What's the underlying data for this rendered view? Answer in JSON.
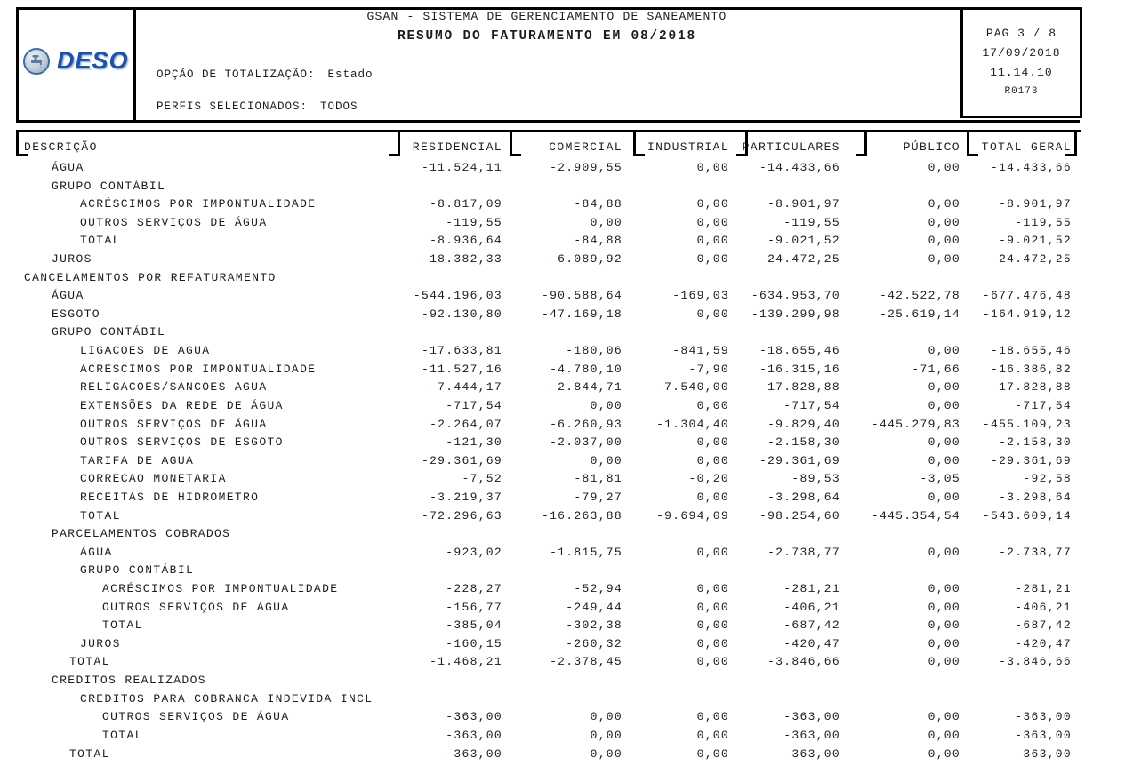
{
  "report": {
    "system_title": "GSAN - SISTEMA DE GERENCIAMENTO DE SANEAMENTO",
    "title": "RESUMO DO FATURAMENTO EM 08/2018",
    "logo_text": "DESO",
    "totalization_label": "OPÇÃO DE TOTALIZAÇÃO:",
    "totalization_value": "Estado",
    "profiles_label": "PERFIS SELECIONADOS:",
    "profiles_value": "TODOS",
    "page_info": {
      "page": "PAG 3 / 8",
      "date": "17/09/2018",
      "time": "11.14.10",
      "report_code": "R0173"
    }
  },
  "table": {
    "description_header": "DESCRIÇÃO",
    "columns": [
      "RESIDENCIAL",
      "COMERCIAL",
      "INDUSTRIAL",
      "PARTICULARES",
      "PÚBLICO",
      "TOTAL GERAL"
    ],
    "rows": [
      {
        "label": "ÁGUA",
        "level": "1",
        "values": [
          "-11.524,11",
          "-2.909,55",
          "0,00",
          "-14.433,66",
          "0,00",
          "-14.433,66"
        ]
      },
      {
        "label": "GRUPO CONTÁBIL",
        "level": "1",
        "values": []
      },
      {
        "label": "ACRÉSCIMOS POR IMPONTUALIDADE",
        "level": "2",
        "values": [
          "-8.817,09",
          "-84,88",
          "0,00",
          "-8.901,97",
          "0,00",
          "-8.901,97"
        ]
      },
      {
        "label": "OUTROS SERVIÇOS DE ÁGUA",
        "level": "2",
        "values": [
          "-119,55",
          "0,00",
          "0,00",
          "-119,55",
          "0,00",
          "-119,55"
        ]
      },
      {
        "label": "TOTAL",
        "level": "2",
        "values": [
          "-8.936,64",
          "-84,88",
          "0,00",
          "-9.021,52",
          "0,00",
          "-9.021,52"
        ]
      },
      {
        "label": "JUROS",
        "level": "1",
        "values": [
          "-18.382,33",
          "-6.089,92",
          "0,00",
          "-24.472,25",
          "0,00",
          "-24.472,25"
        ]
      },
      {
        "label": "CANCELAMENTOS POR REFATURAMENTO",
        "level": "0",
        "values": []
      },
      {
        "label": "ÁGUA",
        "level": "1",
        "values": [
          "-544.196,03",
          "-90.588,64",
          "-169,03",
          "-634.953,70",
          "-42.522,78",
          "-677.476,48"
        ]
      },
      {
        "label": "ESGOTO",
        "level": "1",
        "values": [
          "-92.130,80",
          "-47.169,18",
          "0,00",
          "-139.299,98",
          "-25.619,14",
          "-164.919,12"
        ]
      },
      {
        "label": "GRUPO CONTÁBIL",
        "level": "1",
        "values": []
      },
      {
        "label": "LIGACOES DE AGUA",
        "level": "2",
        "values": [
          "-17.633,81",
          "-180,06",
          "-841,59",
          "-18.655,46",
          "0,00",
          "-18.655,46"
        ]
      },
      {
        "label": "ACRÉSCIMOS POR IMPONTUALIDADE",
        "level": "2",
        "values": [
          "-11.527,16",
          "-4.780,10",
          "-7,90",
          "-16.315,16",
          "-71,66",
          "-16.386,82"
        ]
      },
      {
        "label": "RELIGACOES/SANCOES AGUA",
        "level": "2",
        "values": [
          "-7.444,17",
          "-2.844,71",
          "-7.540,00",
          "-17.828,88",
          "0,00",
          "-17.828,88"
        ]
      },
      {
        "label": "EXTENSÕES DA REDE DE ÁGUA",
        "level": "2",
        "values": [
          "-717,54",
          "0,00",
          "0,00",
          "-717,54",
          "0,00",
          "-717,54"
        ]
      },
      {
        "label": "OUTROS SERVIÇOS DE ÁGUA",
        "level": "2",
        "values": [
          "-2.264,07",
          "-6.260,93",
          "-1.304,40",
          "-9.829,40",
          "-445.279,83",
          "-455.109,23"
        ]
      },
      {
        "label": "OUTROS SERVIÇOS DE ESGOTO",
        "level": "2",
        "values": [
          "-121,30",
          "-2.037,00",
          "0,00",
          "-2.158,30",
          "0,00",
          "-2.158,30"
        ]
      },
      {
        "label": "TARIFA DE AGUA",
        "level": "2",
        "values": [
          "-29.361,69",
          "0,00",
          "0,00",
          "-29.361,69",
          "0,00",
          "-29.361,69"
        ]
      },
      {
        "label": "CORRECAO MONETARIA",
        "level": "2",
        "values": [
          "-7,52",
          "-81,81",
          "-0,20",
          "-89,53",
          "-3,05",
          "-92,58"
        ]
      },
      {
        "label": "RECEITAS DE HIDROMETRO",
        "level": "2",
        "values": [
          "-3.219,37",
          "-79,27",
          "0,00",
          "-3.298,64",
          "0,00",
          "-3.298,64"
        ]
      },
      {
        "label": "TOTAL",
        "level": "2",
        "values": [
          "-72.296,63",
          "-16.263,88",
          "-9.694,09",
          "-98.254,60",
          "-445.354,54",
          "-543.609,14"
        ]
      },
      {
        "label": "PARCELAMENTOS COBRADOS",
        "level": "1",
        "values": []
      },
      {
        "label": "ÁGUA",
        "level": "2",
        "values": [
          "-923,02",
          "-1.815,75",
          "0,00",
          "-2.738,77",
          "0,00",
          "-2.738,77"
        ]
      },
      {
        "label": "GRUPO CONTÁBIL",
        "level": "2",
        "values": []
      },
      {
        "label": "ACRÉSCIMOS POR IMPONTUALIDADE",
        "level": "3",
        "values": [
          "-228,27",
          "-52,94",
          "0,00",
          "-281,21",
          "0,00",
          "-281,21"
        ]
      },
      {
        "label": "OUTROS SERVIÇOS DE ÁGUA",
        "level": "3",
        "values": [
          "-156,77",
          "-249,44",
          "0,00",
          "-406,21",
          "0,00",
          "-406,21"
        ]
      },
      {
        "label": "TOTAL",
        "level": "3",
        "values": [
          "-385,04",
          "-302,38",
          "0,00",
          "-687,42",
          "0,00",
          "-687,42"
        ]
      },
      {
        "label": "JUROS",
        "level": "2",
        "values": [
          "-160,15",
          "-260,32",
          "0,00",
          "-420,47",
          "0,00",
          "-420,47"
        ]
      },
      {
        "label": "TOTAL",
        "level": "t",
        "values": [
          "-1.468,21",
          "-2.378,45",
          "0,00",
          "-3.846,66",
          "0,00",
          "-3.846,66"
        ]
      },
      {
        "label": "CREDITOS REALIZADOS",
        "level": "1",
        "values": []
      },
      {
        "label": "CREDITOS PARA COBRANCA INDEVIDA INCL",
        "level": "2",
        "values": []
      },
      {
        "label": "OUTROS SERVIÇOS DE ÁGUA",
        "level": "3",
        "values": [
          "-363,00",
          "0,00",
          "0,00",
          "-363,00",
          "0,00",
          "-363,00"
        ]
      },
      {
        "label": "TOTAL",
        "level": "3",
        "values": [
          "-363,00",
          "0,00",
          "0,00",
          "-363,00",
          "0,00",
          "-363,00"
        ]
      },
      {
        "label": "TOTAL",
        "level": "t",
        "values": [
          "-363,00",
          "0,00",
          "0,00",
          "-363,00",
          "0,00",
          "-363,00"
        ]
      }
    ]
  }
}
